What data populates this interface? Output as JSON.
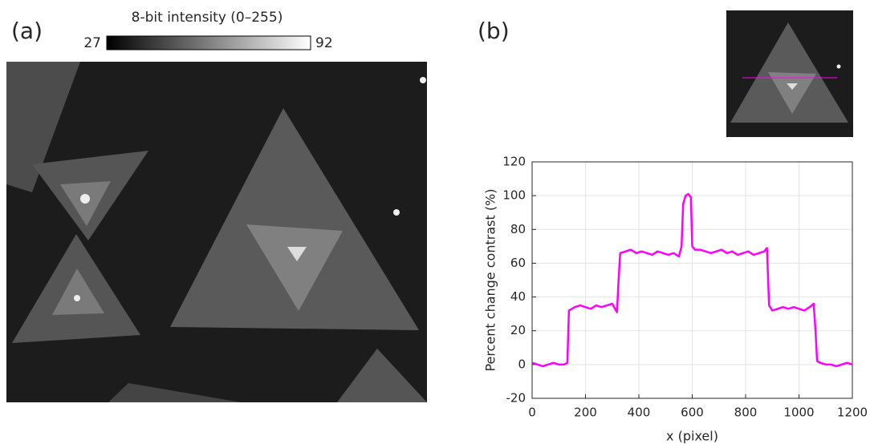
{
  "panel_a": {
    "label": "(a)",
    "colorbar": {
      "label": "8-bit intensity (0–255)",
      "min": 27,
      "max": 92
    }
  },
  "panel_b": {
    "label": "(b)"
  },
  "chart_data": {
    "type": "line",
    "xlabel": "x (pixel)",
    "ylabel": "Percent change contrast (%)",
    "x": [
      0,
      20,
      40,
      60,
      80,
      100,
      120,
      132,
      138,
      160,
      180,
      200,
      220,
      240,
      260,
      280,
      300,
      318,
      324,
      330,
      350,
      370,
      390,
      410,
      430,
      450,
      470,
      490,
      510,
      530,
      550,
      560,
      566,
      575,
      585,
      595,
      600,
      610,
      630,
      650,
      670,
      690,
      710,
      730,
      750,
      770,
      790,
      810,
      830,
      850,
      870,
      880,
      888,
      900,
      920,
      940,
      960,
      980,
      1000,
      1020,
      1040,
      1055,
      1062,
      1068,
      1080,
      1100,
      1120,
      1140,
      1160,
      1180,
      1200
    ],
    "values": [
      1,
      0,
      -1,
      0,
      1,
      0,
      0,
      1,
      32,
      34,
      35,
      34,
      33,
      35,
      34,
      35,
      36,
      31,
      50,
      66,
      67,
      68,
      66,
      67,
      66,
      65,
      67,
      66,
      65,
      66,
      64,
      70,
      95,
      100,
      101,
      99,
      70,
      68,
      68,
      67,
      66,
      67,
      68,
      66,
      67,
      65,
      66,
      67,
      65,
      66,
      67,
      69,
      35,
      32,
      33,
      34,
      33,
      34,
      33,
      32,
      34,
      36,
      20,
      2,
      1,
      0,
      0,
      -1,
      0,
      1,
      0
    ],
    "color": "#ff00ff",
    "xlim": [
      0,
      1200
    ],
    "xticks": [
      0,
      200,
      400,
      600,
      800,
      1000,
      1200
    ],
    "ylim": [
      -20,
      120
    ],
    "yticks": [
      -20,
      0,
      20,
      40,
      60,
      80,
      100,
      120
    ],
    "grid": true
  }
}
